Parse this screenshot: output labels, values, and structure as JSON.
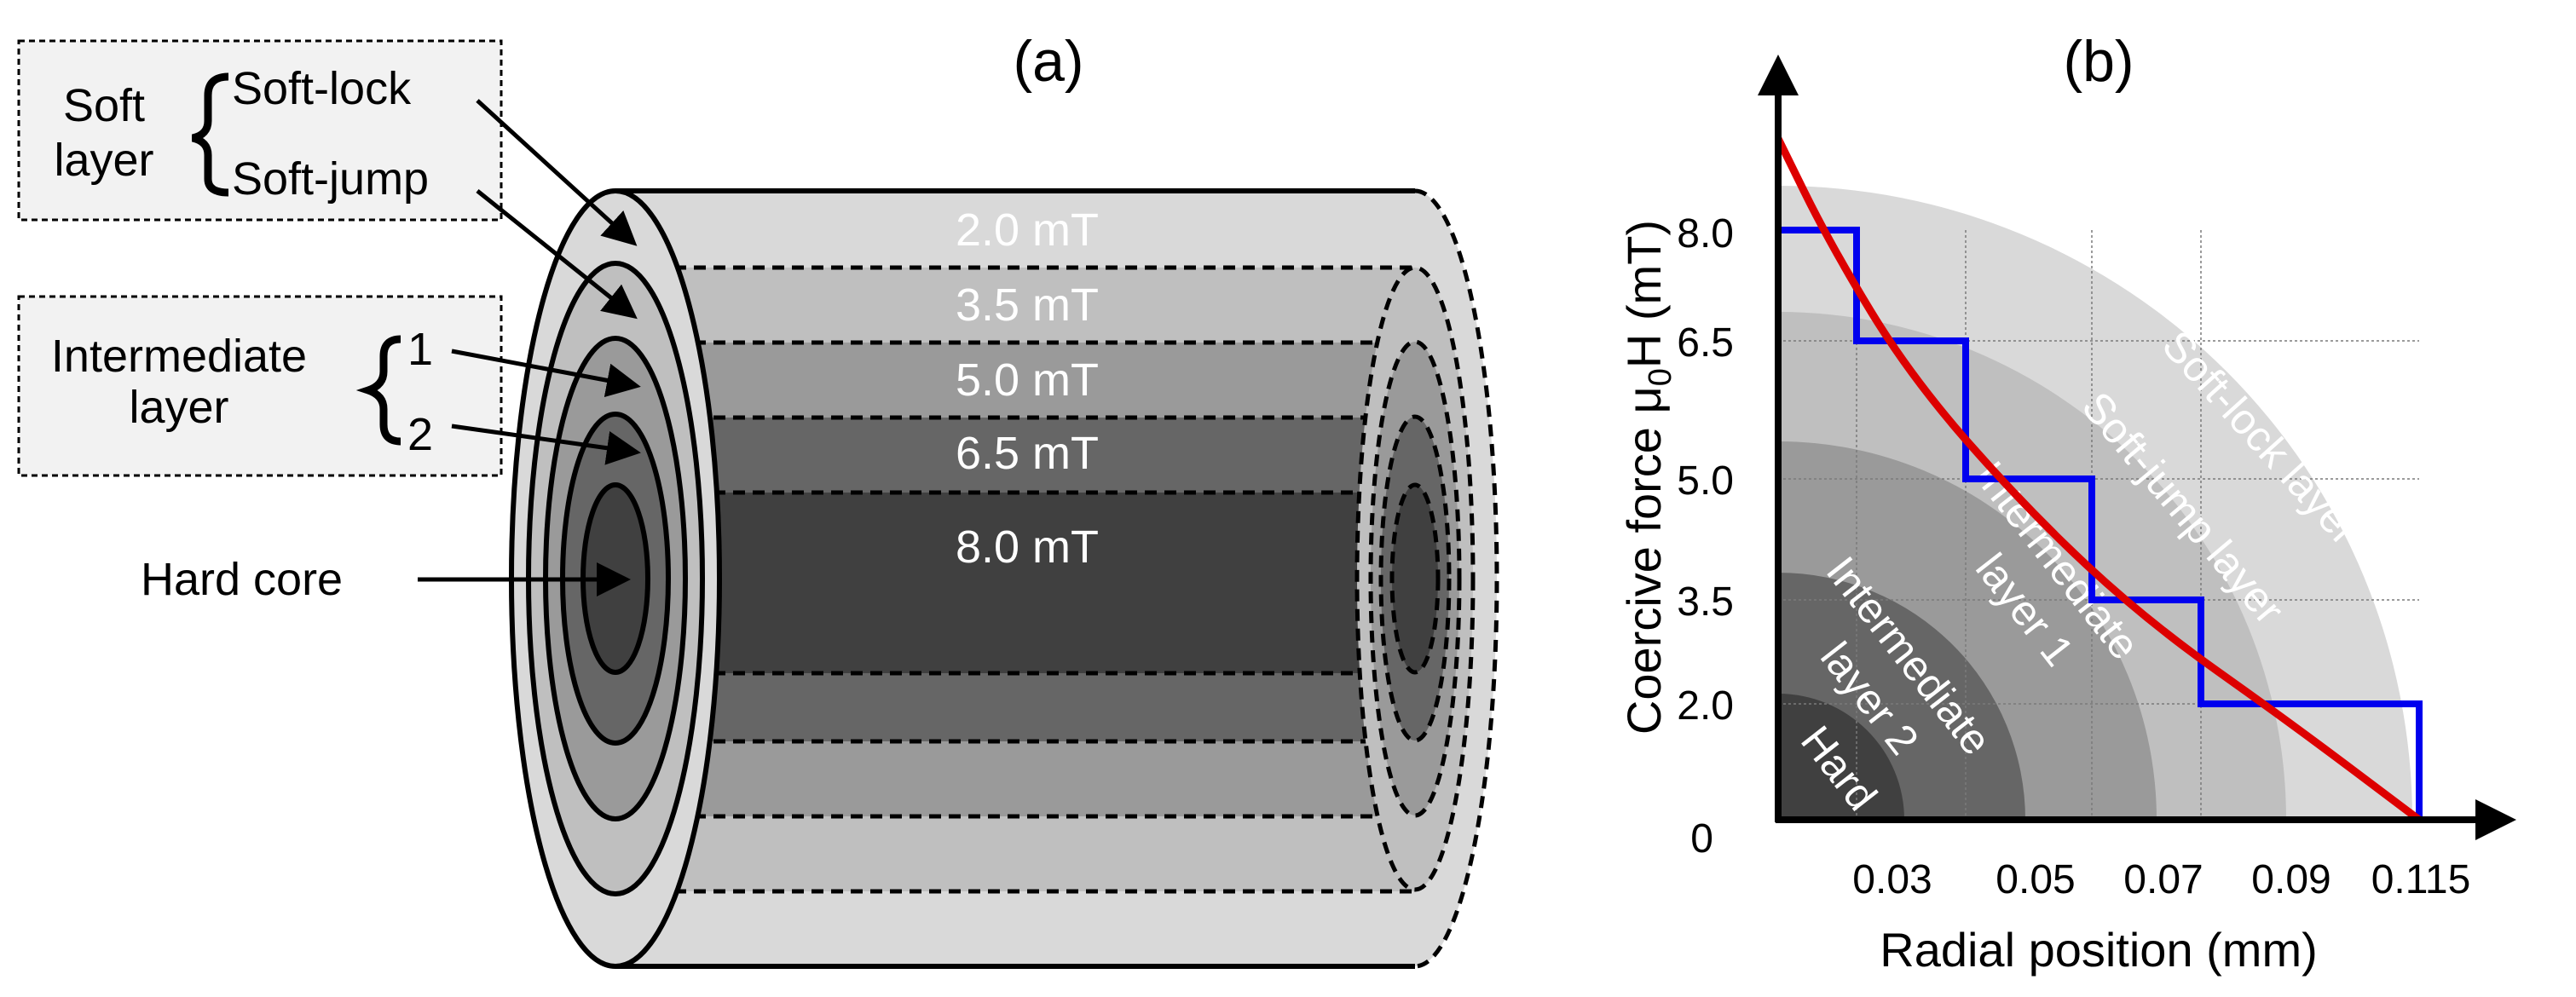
{
  "panel_a": {
    "label": "(a)",
    "legend_soft": {
      "group_label": "Soft layer",
      "group_line1": "Soft",
      "group_line2": "layer",
      "item1": "Soft-lock",
      "item2": "Soft-jump"
    },
    "legend_intermediate": {
      "group_line1": "Intermediate",
      "group_line2": "layer",
      "item1": "1",
      "item2": "2"
    },
    "hard_core_label": "Hard core",
    "layer_fields": [
      "2.0 mT",
      "3.5 mT",
      "5.0 mT",
      "6.5 mT",
      "8.0 mT"
    ],
    "colors": {
      "soft_lock": "#d9d9d9",
      "soft_jump": "#bfbfbf",
      "intermediate_1": "#9a9a9a",
      "intermediate_2": "#666666",
      "hard_core": "#404040"
    }
  },
  "panel_b": {
    "label": "(b)",
    "ylabel": "Coercive force μ₀H (mT)",
    "ylabel_main": "Coercive force μ",
    "ylabel_sub": "0",
    "ylabel_tail": "H (mT)",
    "xlabel": "Radial position (mm)",
    "y_ticks": [
      "8.0",
      "6.5",
      "5.0",
      "3.5",
      "2.0",
      "0"
    ],
    "x_ticks": [
      "0.03",
      "0.05",
      "0.07",
      "0.09",
      "0.115"
    ],
    "region_labels": {
      "soft_lock": "Soft-lock layer",
      "soft_jump": "Soft-jump layer",
      "inter1_line1": "Intermediate",
      "inter1_line2": "layer 1",
      "inter2_line1": "Intermediate",
      "inter2_line2": "layer 2",
      "hard": "Hard"
    },
    "colors": {
      "step_line": "#0000ee",
      "curve": "#dd0000"
    }
  },
  "chart_data": {
    "type": "line",
    "xlabel": "Radial position (mm)",
    "ylabel": "Coercive force μ₀H (mT)",
    "x_ticks": [
      0.03,
      0.05,
      0.07,
      0.09,
      0.115
    ],
    "y_ticks": [
      0,
      2.0,
      3.5,
      5.0,
      6.5,
      8.0
    ],
    "series": [
      {
        "style": "step",
        "color": "#0000ee",
        "x": [
          0,
          0.03,
          0.03,
          0.05,
          0.05,
          0.07,
          0.07,
          0.09,
          0.09,
          0.115
        ],
        "y": [
          8.0,
          8.0,
          6.5,
          6.5,
          5.0,
          5.0,
          3.5,
          3.5,
          2.0,
          2.0
        ]
      },
      {
        "style": "curve",
        "color": "#dd0000",
        "x": [
          0.0,
          0.02,
          0.04,
          0.06,
          0.08,
          0.1,
          0.115
        ],
        "y": [
          9.4,
          7.8,
          6.1,
          4.6,
          3.2,
          1.7,
          0.0
        ]
      }
    ]
  }
}
